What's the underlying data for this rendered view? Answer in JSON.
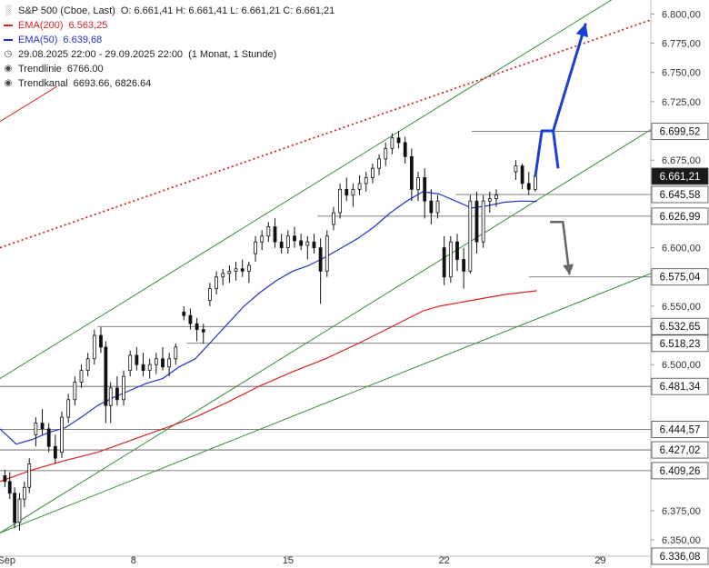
{
  "legend": {
    "title": "S&P 500 (Cboe, Last)",
    "ohlc": "O: 6.661,41   H: 6.661,41   L: 6.661,21   C: 6.661,21",
    "ema200_label": "EMA(200)",
    "ema200_value": "6.563,25",
    "ema50_label": "EMA(50)",
    "ema50_value": "6.639,68",
    "period": "29.08.2025 22:00 - 29.09.2025 22:00",
    "period_note": "(1 Monat, 1 Stunde)",
    "trendline_label": "Trendlinie",
    "trendline_value": "6766.00",
    "trendkanal_label": "Trendkanal",
    "trendkanal_value": "6693.66, 6826.64"
  },
  "colors": {
    "ema200": "#dd2222",
    "ema50": "#2233cc",
    "trend": "#3c8c3c",
    "dotted": "#dd2222",
    "bull_arrow": "#1a3fd6",
    "bear_arrow": "#666666",
    "price_tag": "#1a1a1a",
    "level_tag": "#ffffff"
  },
  "chart_data": {
    "type": "candlestick",
    "y_range": [
      6336.08,
      6812
    ],
    "x_range": [
      0,
      40
    ],
    "x_ticks": [
      {
        "label": "Sep",
        "x": 0.4
      },
      {
        "label": "8",
        "x": 8.2
      },
      {
        "label": "15",
        "x": 17.7
      },
      {
        "label": "22",
        "x": 27.3
      },
      {
        "label": "29",
        "x": 36.9
      }
    ],
    "y_ticks": [
      {
        "label": "6.800,00",
        "v": 6800
      },
      {
        "label": "6.775,00",
        "v": 6775
      },
      {
        "label": "6.750,00",
        "v": 6750
      },
      {
        "label": "6.725,00",
        "v": 6725
      },
      {
        "label": "6.675,00",
        "v": 6675
      },
      {
        "label": "6.600,00",
        "v": 6600
      },
      {
        "label": "6.550,00",
        "v": 6550
      },
      {
        "label": "6.500,00",
        "v": 6500
      },
      {
        "label": "6.375,00",
        "v": 6375
      },
      {
        "label": "6.350,00",
        "v": 6350
      }
    ],
    "levels": [
      {
        "label": "6.699,52",
        "v": 6699.52,
        "x_start": 29.0
      },
      {
        "label": "6.645,58",
        "v": 6645.58,
        "x_start": 28.0
      },
      {
        "label": "6.626,99",
        "v": 6626.99,
        "x_start": 19.5
      },
      {
        "label": "6.575,04",
        "v": 6575.04,
        "x_start": 32.5
      },
      {
        "label": "6.532,65",
        "v": 6532.65,
        "x_start": 6.0
      },
      {
        "label": "6.518,23",
        "v": 6518.23,
        "x_start": 11.5
      },
      {
        "label": "6.481,34",
        "v": 6481.34,
        "x_start": 0
      },
      {
        "label": "6.444,57",
        "v": 6444.57,
        "x_start": 0
      },
      {
        "label": "6.427,02",
        "v": 6427.02,
        "x_start": 0
      },
      {
        "label": "6.409,26",
        "v": 6409.26,
        "x_start": 0
      }
    ],
    "last_price": {
      "label": "6.661,21",
      "v": 6661.21
    },
    "bottom_tag": {
      "label": "6.336,08",
      "v": 6336.08
    },
    "candles": [
      [
        0.3,
        6405,
        6410,
        6395,
        6400
      ],
      [
        0.6,
        6400,
        6408,
        6385,
        6390
      ],
      [
        0.9,
        6390,
        6395,
        6360,
        6365
      ],
      [
        1.2,
        6365,
        6390,
        6358,
        6385
      ],
      [
        1.5,
        6385,
        6400,
        6378,
        6395
      ],
      [
        1.8,
        6395,
        6420,
        6390,
        6415
      ],
      [
        2.2,
        6440,
        6455,
        6430,
        6450
      ],
      [
        2.6,
        6450,
        6462,
        6440,
        6445
      ],
      [
        3.0,
        6445,
        6450,
        6425,
        6430
      ],
      [
        3.4,
        6430,
        6440,
        6415,
        6420
      ],
      [
        3.8,
        6425,
        6460,
        6420,
        6455
      ],
      [
        4.2,
        6455,
        6475,
        6450,
        6470
      ],
      [
        4.6,
        6470,
        6490,
        6465,
        6485
      ],
      [
        5.0,
        6485,
        6500,
        6480,
        6495
      ],
      [
        5.4,
        6495,
        6510,
        6490,
        6505
      ],
      [
        5.8,
        6505,
        6530,
        6500,
        6525
      ],
      [
        6.2,
        6525,
        6532,
        6510,
        6515
      ],
      [
        6.5,
        6515,
        6520,
        6450,
        6465
      ],
      [
        6.8,
        6465,
        6485,
        6450,
        6480
      ],
      [
        7.2,
        6480,
        6490,
        6465,
        6470
      ],
      [
        7.6,
        6470,
        6495,
        6465,
        6490
      ],
      [
        8.0,
        6495,
        6512,
        6490,
        6508
      ],
      [
        8.4,
        6508,
        6515,
        6495,
        6500
      ],
      [
        8.8,
        6500,
        6510,
        6490,
        6495
      ],
      [
        9.2,
        6495,
        6505,
        6488,
        6500
      ],
      [
        9.6,
        6500,
        6510,
        6492,
        6505
      ],
      [
        10.0,
        6505,
        6515,
        6495,
        6498
      ],
      [
        10.4,
        6498,
        6510,
        6490,
        6505
      ],
      [
        10.8,
        6505,
        6518,
        6500,
        6515
      ],
      [
        11.3,
        6545,
        6550,
        6538,
        6542
      ],
      [
        11.7,
        6542,
        6548,
        6530,
        6535
      ],
      [
        12.1,
        6535,
        6540,
        6520,
        6530
      ],
      [
        12.5,
        6530,
        6535,
        6518,
        6528
      ],
      [
        12.9,
        6555,
        6570,
        6550,
        6565
      ],
      [
        13.3,
        6565,
        6580,
        6560,
        6575
      ],
      [
        13.7,
        6575,
        6582,
        6568,
        6578
      ],
      [
        14.1,
        6578,
        6585,
        6570,
        6580
      ],
      [
        14.5,
        6580,
        6588,
        6572,
        6582
      ],
      [
        14.9,
        6582,
        6590,
        6575,
        6580
      ],
      [
        15.3,
        6580,
        6588,
        6570,
        6585
      ],
      [
        15.7,
        6595,
        6610,
        6588,
        6605
      ],
      [
        16.1,
        6605,
        6615,
        6598,
        6610
      ],
      [
        16.5,
        6610,
        6622,
        6605,
        6618
      ],
      [
        16.9,
        6618,
        6625,
        6600,
        6605
      ],
      [
        17.3,
        6605,
        6612,
        6595,
        6600
      ],
      [
        17.7,
        6600,
        6615,
        6595,
        6610
      ],
      [
        18.1,
        6610,
        6618,
        6600,
        6606
      ],
      [
        18.5,
        6606,
        6612,
        6598,
        6602
      ],
      [
        18.9,
        6602,
        6610,
        6590,
        6605
      ],
      [
        19.3,
        6605,
        6612,
        6595,
        6600
      ],
      [
        19.7,
        6600,
        6608,
        6552,
        6580
      ],
      [
        20.1,
        6580,
        6615,
        6575,
        6610
      ],
      [
        20.5,
        6620,
        6635,
        6615,
        6630
      ],
      [
        20.9,
        6630,
        6655,
        6625,
        6650
      ],
      [
        21.3,
        6650,
        6660,
        6640,
        6645
      ],
      [
        21.7,
        6645,
        6655,
        6635,
        6650
      ],
      [
        22.1,
        6650,
        6662,
        6645,
        6655
      ],
      [
        22.5,
        6655,
        6665,
        6648,
        6660
      ],
      [
        22.9,
        6660,
        6672,
        6655,
        6668
      ],
      [
        23.3,
        6668,
        6680,
        6662,
        6676
      ],
      [
        23.7,
        6676,
        6690,
        6670,
        6685
      ],
      [
        24.1,
        6685,
        6698,
        6680,
        6694
      ],
      [
        24.5,
        6694,
        6700,
        6685,
        6690
      ],
      [
        24.9,
        6690,
        6695,
        6672,
        6678
      ],
      [
        25.3,
        6678,
        6685,
        6640,
        6650
      ],
      [
        25.7,
        6650,
        6665,
        6640,
        6660
      ],
      [
        26.1,
        6660,
        6668,
        6625,
        6640
      ],
      [
        26.5,
        6640,
        6650,
        6620,
        6630
      ],
      [
        26.9,
        6630,
        6645,
        6625,
        6640
      ],
      [
        27.3,
        6600,
        6610,
        6568,
        6575
      ],
      [
        27.7,
        6575,
        6610,
        6570,
        6605
      ],
      [
        28.1,
        6605,
        6612,
        6580,
        6590
      ],
      [
        28.5,
        6590,
        6600,
        6565,
        6580
      ],
      [
        28.9,
        6580,
        6645,
        6578,
        6640
      ],
      [
        29.3,
        6640,
        6648,
        6595,
        6605
      ],
      [
        29.7,
        6605,
        6645,
        6600,
        6640
      ],
      [
        30.1,
        6640,
        6648,
        6630,
        6642
      ],
      [
        30.5,
        6642,
        6650,
        6635,
        6645
      ],
      [
        31.7,
        6665,
        6675,
        6658,
        6670
      ],
      [
        32.1,
        6670,
        6672,
        6650,
        6655
      ],
      [
        32.5,
        6655,
        6665,
        6645,
        6650
      ],
      [
        32.9,
        6650,
        6661,
        6648,
        6661
      ]
    ],
    "ema50": [
      [
        0,
        6445
      ],
      [
        1,
        6432
      ],
      [
        2,
        6436
      ],
      [
        3,
        6442
      ],
      [
        4,
        6446
      ],
      [
        5,
        6455
      ],
      [
        6,
        6465
      ],
      [
        7,
        6472
      ],
      [
        8,
        6478
      ],
      [
        9,
        6484
      ],
      [
        10,
        6488
      ],
      [
        11,
        6498
      ],
      [
        12,
        6505
      ],
      [
        13,
        6520
      ],
      [
        14,
        6535
      ],
      [
        15,
        6550
      ],
      [
        16,
        6562
      ],
      [
        17,
        6572
      ],
      [
        18,
        6580
      ],
      [
        19,
        6585
      ],
      [
        20,
        6592
      ],
      [
        21,
        6600
      ],
      [
        22,
        6608
      ],
      [
        23,
        6618
      ],
      [
        24,
        6630
      ],
      [
        25,
        6640
      ],
      [
        26,
        6648
      ],
      [
        27,
        6646
      ],
      [
        28,
        6640
      ],
      [
        29,
        6634
      ],
      [
        30,
        6636
      ],
      [
        31,
        6639
      ],
      [
        32,
        6640
      ],
      [
        33,
        6639.68
      ]
    ],
    "ema200": [
      [
        0,
        6400
      ],
      [
        2,
        6410
      ],
      [
        4,
        6418
      ],
      [
        6,
        6425
      ],
      [
        8,
        6435
      ],
      [
        10,
        6445
      ],
      [
        12,
        6455
      ],
      [
        14,
        6468
      ],
      [
        16,
        6482
      ],
      [
        18,
        6494
      ],
      [
        20,
        6505
      ],
      [
        22,
        6518
      ],
      [
        24,
        6532
      ],
      [
        26,
        6546
      ],
      [
        27,
        6550
      ],
      [
        29,
        6555
      ],
      [
        31,
        6560
      ],
      [
        33,
        6563.25
      ]
    ],
    "channel_upper": [
      [
        0,
        6488
      ],
      [
        40,
        6833
      ]
    ],
    "channel_lower": [
      [
        0,
        6356
      ],
      [
        40,
        6701
      ]
    ],
    "support_line": [
      [
        0,
        6356
      ],
      [
        40,
        6578
      ]
    ],
    "dotted_line": [
      [
        0,
        6600
      ],
      [
        40,
        6795
      ]
    ],
    "ema_legacy_line": [
      [
        0,
        6708
      ],
      [
        3.5,
        6738
      ]
    ],
    "bull_arrow": [
      [
        32.9,
        6661
      ],
      [
        33.3,
        6700
      ],
      [
        34.0,
        6700
      ],
      [
        36.0,
        6792
      ]
    ],
    "bull_arrow_small": [
      [
        34.0,
        6700
      ],
      [
        34.3,
        6668
      ]
    ],
    "bear_arrow": [
      [
        33.8,
        6622
      ],
      [
        34.6,
        6622
      ],
      [
        35.0,
        6577
      ]
    ]
  }
}
